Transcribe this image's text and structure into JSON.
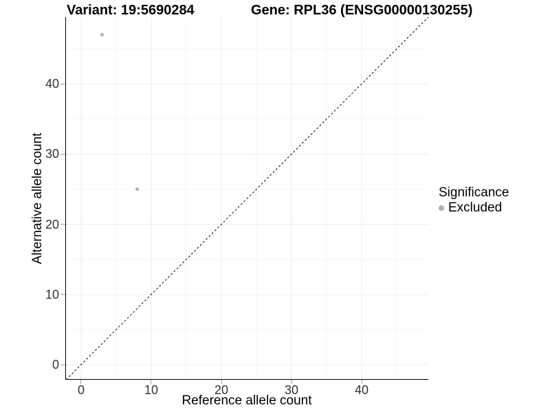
{
  "chart_data": {
    "type": "scatter",
    "titles": [
      "Variant: 19:5690284",
      "Gene: RPL36 (ENSG00000130255)"
    ],
    "xlabel": "Reference allele count",
    "ylabel": "Alternative allele count",
    "xlim": [
      -2.25,
      49.5
    ],
    "ylim": [
      -2.15,
      49.5
    ],
    "x_ticks": [
      0,
      10,
      20,
      30,
      40
    ],
    "y_ticks": [
      0,
      10,
      20,
      30,
      40
    ],
    "x_minor_ticks": [
      5,
      15,
      25,
      35,
      45
    ],
    "y_minor_ticks": [
      5,
      15,
      25,
      35,
      45
    ],
    "grid": true,
    "points": [
      {
        "x": 3,
        "y": 47,
        "series": "Excluded"
      },
      {
        "x": 8,
        "y": 25,
        "series": "Excluded"
      }
    ],
    "identity_line": {
      "slope": 1,
      "intercept": 0,
      "style": "dashed",
      "color": "#000000"
    },
    "legend": {
      "position": "right",
      "title": "Significance",
      "items": [
        {
          "label": "Excluded",
          "color": "#b0b0b0"
        }
      ]
    },
    "colors": {
      "point": "#b0b0b0",
      "grid_major": "#ebebeb",
      "grid_minor": "#f5f5f5",
      "axis_line": "#000000",
      "tick_mark": "#999999",
      "tick_label": "#333333"
    }
  }
}
